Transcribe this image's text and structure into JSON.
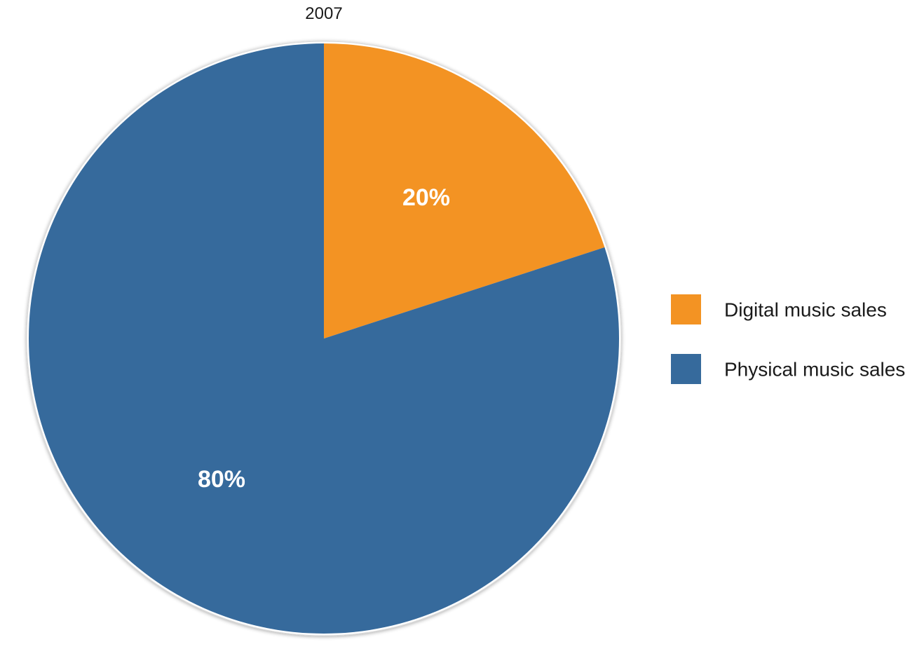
{
  "chart_data": {
    "type": "pie",
    "title": "2007",
    "categories": [
      "Digital music sales",
      "Physical music sales"
    ],
    "values": [
      20,
      80
    ],
    "labels": [
      "20%",
      "80%"
    ],
    "colors": [
      "#F39323",
      "#366A9C"
    ],
    "start_angle": "12 o'clock",
    "direction": "clockwise",
    "legend_position": "right"
  }
}
